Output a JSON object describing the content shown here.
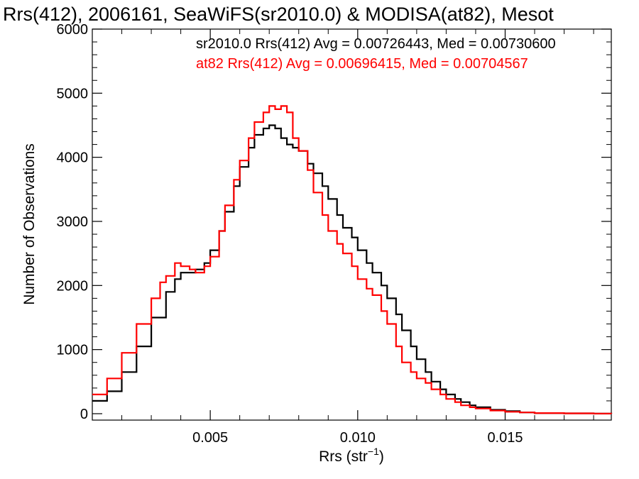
{
  "chart_data": {
    "type": "line",
    "title": "Rrs(412), 2006161, SeaWiFS(sr2010.0) & MODISA(at82), Mesot",
    "xlabel_base": "Rrs (str",
    "xlabel_exp": "−1",
    "xlabel_close": ")",
    "ylabel": "Number of Observations",
    "xlim": [
      0.001,
      0.0186
    ],
    "ylim": [
      -100,
      6000
    ],
    "xticks": [
      0.005,
      0.01,
      0.015
    ],
    "xtick_labels": [
      "0.005",
      "0.010",
      "0.015"
    ],
    "yticks": [
      0,
      1000,
      2000,
      3000,
      4000,
      5000,
      6000
    ],
    "ytick_labels": [
      "0",
      "1000",
      "2000",
      "3000",
      "4000",
      "5000",
      "6000"
    ],
    "annotations": [
      {
        "text": "sr2010.0 Rrs(412) Avg = 0.00726443, Med = 0.00730600",
        "color": "#000000"
      },
      {
        "text": "at82 Rrs(412) Avg = 0.00696415, Med = 0.00704567",
        "color": "#ff0000"
      }
    ],
    "series": [
      {
        "color": "#000000",
        "x": [
          0.001,
          0.0015,
          0.002,
          0.0025,
          0.003,
          0.0035,
          0.0038,
          0.004,
          0.0043,
          0.0045,
          0.0048,
          0.005,
          0.0053,
          0.0055,
          0.0058,
          0.006,
          0.0063,
          0.0065,
          0.0068,
          0.007,
          0.0072,
          0.0074,
          0.0076,
          0.0078,
          0.008,
          0.0083,
          0.0085,
          0.0088,
          0.009,
          0.0093,
          0.0095,
          0.0098,
          0.01,
          0.0103,
          0.0105,
          0.0108,
          0.011,
          0.0113,
          0.0115,
          0.0118,
          0.012,
          0.0123,
          0.0125,
          0.0128,
          0.013,
          0.0133,
          0.0135,
          0.0138,
          0.014,
          0.0145,
          0.015,
          0.0155,
          0.016,
          0.017,
          0.018,
          0.0186
        ],
        "y": [
          200,
          350,
          650,
          1050,
          1500,
          1900,
          2100,
          2200,
          2200,
          2250,
          2350,
          2550,
          2850,
          3150,
          3550,
          3850,
          4150,
          4350,
          4450,
          4500,
          4450,
          4300,
          4200,
          4150,
          4100,
          3900,
          3750,
          3550,
          3350,
          3100,
          2900,
          2750,
          2550,
          2350,
          2200,
          2000,
          1800,
          1550,
          1300,
          1050,
          850,
          650,
          500,
          380,
          300,
          230,
          180,
          130,
          100,
          60,
          40,
          20,
          10,
          5,
          2,
          0
        ]
      },
      {
        "color": "#ff0000",
        "x": [
          0.001,
          0.0015,
          0.002,
          0.0025,
          0.003,
          0.0033,
          0.0035,
          0.0038,
          0.004,
          0.0043,
          0.0045,
          0.0048,
          0.005,
          0.0053,
          0.0055,
          0.0058,
          0.006,
          0.0063,
          0.0065,
          0.0068,
          0.007,
          0.0072,
          0.0074,
          0.0076,
          0.0078,
          0.008,
          0.0083,
          0.0085,
          0.0088,
          0.009,
          0.0093,
          0.0095,
          0.0098,
          0.01,
          0.0103,
          0.0105,
          0.0108,
          0.011,
          0.0113,
          0.0115,
          0.0118,
          0.012,
          0.0123,
          0.0125,
          0.0128,
          0.013,
          0.0133,
          0.0135,
          0.0138,
          0.014,
          0.0145,
          0.015,
          0.0155,
          0.016,
          0.017,
          0.018,
          0.0186
        ],
        "y": [
          300,
          550,
          950,
          1400,
          1800,
          2050,
          2150,
          2350,
          2300,
          2250,
          2200,
          2300,
          2450,
          2850,
          3250,
          3650,
          3950,
          4300,
          4550,
          4700,
          4800,
          4750,
          4800,
          4700,
          4300,
          4100,
          3800,
          3450,
          3100,
          2850,
          2650,
          2500,
          2300,
          2100,
          1950,
          1850,
          1600,
          1400,
          1050,
          800,
          650,
          550,
          480,
          380,
          300,
          230,
          180,
          130,
          100,
          80,
          50,
          30,
          20,
          10,
          5,
          2,
          0
        ]
      }
    ]
  }
}
